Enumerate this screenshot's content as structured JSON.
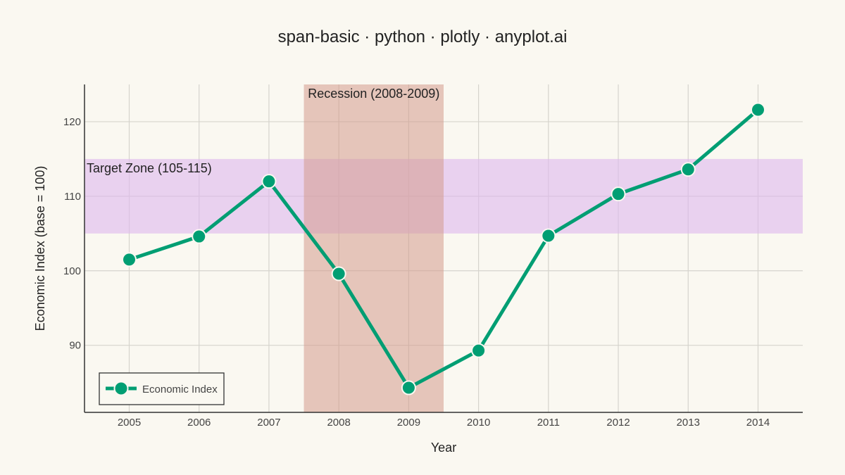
{
  "chart_data": {
    "type": "line",
    "title": "span-basic · python · plotly · anyplot.ai",
    "xlabel": "Year",
    "ylabel": "Economic Index (base = 100)",
    "x": [
      2005,
      2006,
      2007,
      2008,
      2009,
      2010,
      2011,
      2012,
      2013,
      2014
    ],
    "xlim": [
      2004.36,
      2014.64
    ],
    "ylim": [
      81.0,
      125.0
    ],
    "yticks": [
      90,
      100,
      110,
      120
    ],
    "grid": true,
    "series": [
      {
        "name": "Economic Index",
        "color": "#009E73",
        "values": [
          101.5,
          104.6,
          112.0,
          99.6,
          84.3,
          89.3,
          104.7,
          110.3,
          113.6,
          121.6
        ]
      }
    ],
    "spans": [
      {
        "orientation": "vertical",
        "x0": 2007.5,
        "x1": 2009.5,
        "label": "Recession (2008-2009)",
        "color": "#D49A8C"
      },
      {
        "orientation": "horizontal",
        "y0": 105,
        "y1": 115,
        "label": "Target Zone (105-115)",
        "color": "#DDB8EE"
      }
    ],
    "legend": {
      "position": "bottom-left",
      "entries": [
        "Economic Index"
      ]
    }
  }
}
